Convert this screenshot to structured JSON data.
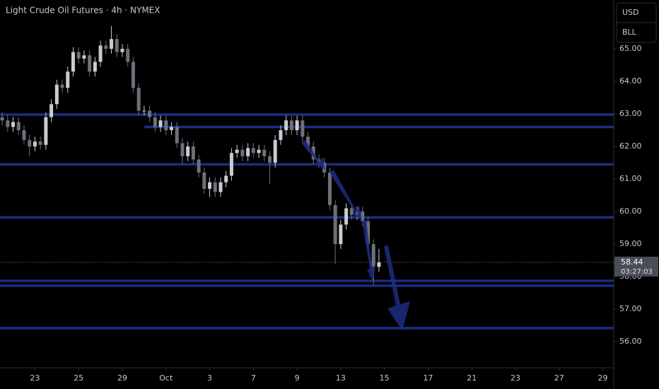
{
  "chart_data": {
    "type": "candlestick",
    "title": "Light Crude Oil Futures · 4h · NYMEX",
    "currency": "USD",
    "unit": "BLL",
    "last_price": 58.44,
    "countdown": "03:27:03",
    "up_color": "#c9cbd1",
    "down_color": "#6e7079",
    "level_color": "#1c2d80",
    "xlim": [
      -1.6,
      26.5
    ],
    "ylim": [
      55.2,
      66.5
    ],
    "xticks": [
      {
        "value": 0,
        "label": "23"
      },
      {
        "value": 2,
        "label": "25"
      },
      {
        "value": 4,
        "label": "29"
      },
      {
        "value": 6,
        "label": "Oct"
      },
      {
        "value": 8,
        "label": "3"
      },
      {
        "value": 10,
        "label": "7"
      },
      {
        "value": 12,
        "label": "9"
      },
      {
        "value": 14,
        "label": "13"
      },
      {
        "value": 16,
        "label": "15"
      },
      {
        "value": 18,
        "label": "17"
      },
      {
        "value": 20,
        "label": "21"
      },
      {
        "value": 22,
        "label": "23"
      },
      {
        "value": 24,
        "label": "27"
      },
      {
        "value": 26,
        "label": "29"
      }
    ],
    "yticks": [
      {
        "value": 56,
        "label": "56.00"
      },
      {
        "value": 57,
        "label": "57.00"
      },
      {
        "value": 58,
        "label": "58.00"
      },
      {
        "value": 59,
        "label": "59.00"
      },
      {
        "value": 60,
        "label": "60.00"
      },
      {
        "value": 61,
        "label": "61.00"
      },
      {
        "value": 62,
        "label": "62.00"
      },
      {
        "value": 63,
        "label": "63.00"
      },
      {
        "value": 64,
        "label": "64.00"
      },
      {
        "value": 65,
        "label": "65.00"
      }
    ],
    "levels": [
      62.98,
      61.45,
      59.82,
      57.87,
      57.72,
      56.42
    ],
    "ray_levels": [
      {
        "price": 62.6,
        "x": 5.0
      }
    ],
    "x": [
      -1.5,
      -1.25,
      -1,
      -0.75,
      -0.5,
      -0.25,
      0,
      0.25,
      0.5,
      0.75,
      1,
      1.25,
      1.5,
      1.75,
      2,
      2.25,
      2.5,
      2.75,
      3,
      3.25,
      3.5,
      3.75,
      4,
      4.25,
      4.5,
      4.75,
      5,
      5.25,
      5.5,
      5.75,
      6,
      6.25,
      6.5,
      6.75,
      7,
      7.25,
      7.5,
      7.75,
      8,
      8.25,
      8.5,
      8.75,
      9,
      9.25,
      9.5,
      9.75,
      10,
      10.25,
      10.5,
      10.75,
      11,
      11.25,
      11.5,
      11.75,
      12,
      12.25,
      12.5,
      12.75,
      13,
      13.25,
      13.5,
      13.75,
      14,
      14.25,
      14.5,
      14.75,
      15,
      15.25,
      15.5,
      15.75
    ],
    "open": [
      62.9,
      62.8,
      62.6,
      62.75,
      62.5,
      62.2,
      62.0,
      62.15,
      62.05,
      62.9,
      63.3,
      63.9,
      63.8,
      64.3,
      64.9,
      64.7,
      64.8,
      64.3,
      64.6,
      65.1,
      65.0,
      65.3,
      64.9,
      65.0,
      64.6,
      63.8,
      63.1,
      63.1,
      62.9,
      62.6,
      62.8,
      62.5,
      62.6,
      62.1,
      61.7,
      62.0,
      61.6,
      61.2,
      60.7,
      60.9,
      60.6,
      60.9,
      61.1,
      61.8,
      61.9,
      61.7,
      61.95,
      61.8,
      61.9,
      61.7,
      61.5,
      62.2,
      62.5,
      62.8,
      62.5,
      62.8,
      62.3,
      62.0,
      61.6,
      61.5,
      61.2,
      60.2,
      59.0,
      59.6,
      60.1,
      59.9,
      60.0,
      59.7,
      59.0,
      58.3
    ],
    "high": [
      63.05,
      62.95,
      62.9,
      62.9,
      62.65,
      62.35,
      62.3,
      62.3,
      63.05,
      63.45,
      64.05,
      64.05,
      64.45,
      65.05,
      65.05,
      64.95,
      64.95,
      64.75,
      65.25,
      65.25,
      65.7,
      65.45,
      65.15,
      65.15,
      64.75,
      63.95,
      63.25,
      63.25,
      63.05,
      62.95,
      62.95,
      62.75,
      62.75,
      62.25,
      62.15,
      62.15,
      61.75,
      61.35,
      61.05,
      61.05,
      61.05,
      61.25,
      61.95,
      62.05,
      62.05,
      62.1,
      62.1,
      62.05,
      62.05,
      61.85,
      62.35,
      62.65,
      62.95,
      62.95,
      62.95,
      62.95,
      62.45,
      62.15,
      61.75,
      61.65,
      61.35,
      60.35,
      59.75,
      60.25,
      60.25,
      60.15,
      60.15,
      59.85,
      59.15,
      58.85
    ],
    "low": [
      62.65,
      62.45,
      62.45,
      62.35,
      62.05,
      61.7,
      61.85,
      61.9,
      61.9,
      62.75,
      63.15,
      63.65,
      63.65,
      64.15,
      64.55,
      64.55,
      64.15,
      64.15,
      64.45,
      64.85,
      64.85,
      64.75,
      64.75,
      64.45,
      63.65,
      62.95,
      62.95,
      62.75,
      62.45,
      62.45,
      62.35,
      62.35,
      61.95,
      61.45,
      61.55,
      61.45,
      61.05,
      60.55,
      60.45,
      60.45,
      60.45,
      60.75,
      60.95,
      61.65,
      61.55,
      61.55,
      61.65,
      61.65,
      61.55,
      60.85,
      61.35,
      62.05,
      62.35,
      62.35,
      62.35,
      62.15,
      61.85,
      61.45,
      61.35,
      61.05,
      60.05,
      58.4,
      58.85,
      59.45,
      59.75,
      59.75,
      59.55,
      58.85,
      57.75,
      58.15
    ],
    "close": [
      62.8,
      62.6,
      62.75,
      62.5,
      62.2,
      62.0,
      62.15,
      62.05,
      62.9,
      63.3,
      63.9,
      63.8,
      64.3,
      64.9,
      64.7,
      64.8,
      64.3,
      64.6,
      65.1,
      65.0,
      65.3,
      64.9,
      65.0,
      64.6,
      63.8,
      63.1,
      63.1,
      62.9,
      62.6,
      62.8,
      62.5,
      62.6,
      62.1,
      61.7,
      62.0,
      61.6,
      61.2,
      60.7,
      60.9,
      60.6,
      60.9,
      61.1,
      61.8,
      61.9,
      61.7,
      61.95,
      61.8,
      61.9,
      61.7,
      61.5,
      62.2,
      62.5,
      62.8,
      62.5,
      62.8,
      62.3,
      62.0,
      61.6,
      61.5,
      61.2,
      60.2,
      59.0,
      59.6,
      60.1,
      59.9,
      60.0,
      59.7,
      59.0,
      58.3,
      58.44
    ]
  }
}
